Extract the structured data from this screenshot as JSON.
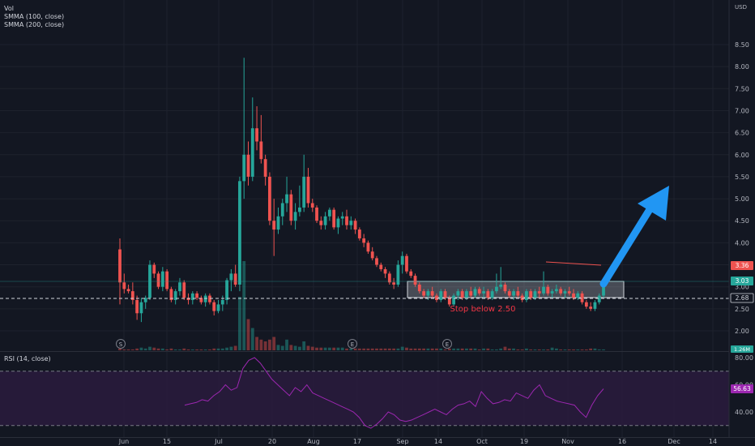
{
  "chart_data": {
    "type": "candlestick",
    "currency": "USD",
    "price_axis": {
      "range": [
        1.7,
        8.7
      ],
      "ticks": [
        "8.50",
        "8.00",
        "7.50",
        "7.00",
        "6.50",
        "6.00",
        "5.50",
        "5.00",
        "4.50",
        "4.00",
        "3.50",
        "3.00",
        "2.50",
        "2.00"
      ]
    },
    "time_axis": {
      "ticks": [
        "Jun",
        "15",
        "Jul",
        "20",
        "Aug",
        "17",
        "Sep",
        "14",
        "Oct",
        "19",
        "Nov",
        "16",
        "Dec",
        "14"
      ]
    },
    "legend": {
      "volume": "Vol",
      "smma100": "SMMA (100, close)",
      "smma200": "SMMA (200, close)"
    },
    "price_labels": {
      "red_line": "3.36",
      "current": "3.03",
      "stop_line": "2.68",
      "volume": "1.26M"
    },
    "annotation": "Stop below 2.50",
    "events": [
      "S",
      "E",
      "E"
    ],
    "rsi": {
      "label": "RSI (14, close)",
      "ticks": [
        "80.00",
        "60.00",
        "40.00"
      ],
      "range": [
        15,
        85
      ],
      "upper": 70,
      "lower": 30,
      "value": "56.63",
      "values": [
        45,
        46,
        47,
        49,
        48,
        52,
        55,
        60,
        56,
        58,
        72,
        78,
        80,
        76,
        70,
        64,
        60,
        56,
        52,
        58,
        55,
        60,
        54,
        52,
        50,
        48,
        46,
        44,
        42,
        40,
        36,
        30,
        28,
        31,
        35,
        40,
        38,
        34,
        33,
        34,
        36,
        38,
        40,
        42,
        40,
        38,
        42,
        45,
        46,
        48,
        44,
        55,
        50,
        46,
        47,
        49,
        48,
        54,
        52,
        50,
        56,
        60,
        52,
        50,
        48,
        47,
        46,
        45,
        40,
        36,
        45,
        52,
        57
      ]
    },
    "candles": [
      {
        "d": "Jun 1",
        "o": 3.85,
        "h": 4.1,
        "l": 2.6,
        "c": 3.1
      },
      {
        "d": "Jun 2",
        "o": 3.1,
        "h": 3.3,
        "l": 2.85,
        "c": 2.95
      },
      {
        "d": "Jun 3",
        "o": 2.95,
        "h": 3.05,
        "l": 2.85,
        "c": 2.9
      },
      {
        "d": "Jun 4",
        "o": 2.9,
        "h": 3.1,
        "l": 2.6,
        "c": 2.7
      },
      {
        "d": "Jun 5",
        "o": 2.7,
        "h": 2.8,
        "l": 2.25,
        "c": 2.4
      },
      {
        "d": "Jun 8",
        "o": 2.4,
        "h": 2.75,
        "l": 2.2,
        "c": 2.65
      },
      {
        "d": "Jun 9",
        "o": 2.65,
        "h": 2.8,
        "l": 2.5,
        "c": 2.75
      },
      {
        "d": "Jun 10",
        "o": 2.75,
        "h": 3.6,
        "l": 2.7,
        "c": 3.5
      },
      {
        "d": "Jun 11",
        "o": 3.5,
        "h": 3.55,
        "l": 3.2,
        "c": 3.3
      },
      {
        "d": "Jun 12",
        "o": 3.3,
        "h": 3.35,
        "l": 2.95,
        "c": 3.0
      },
      {
        "d": "Jun 15",
        "o": 3.0,
        "h": 3.45,
        "l": 2.9,
        "c": 3.35
      },
      {
        "d": "Jun 16",
        "o": 3.35,
        "h": 3.4,
        "l": 2.9,
        "c": 2.95
      },
      {
        "d": "Jun 17",
        "o": 2.95,
        "h": 3.0,
        "l": 2.65,
        "c": 2.7
      },
      {
        "d": "Jun 18",
        "o": 2.7,
        "h": 2.95,
        "l": 2.6,
        "c": 2.9
      },
      {
        "d": "Jun 19",
        "o": 2.9,
        "h": 3.2,
        "l": 2.8,
        "c": 3.1
      },
      {
        "d": "Jun 22",
        "o": 3.1,
        "h": 3.15,
        "l": 2.7,
        "c": 2.75
      },
      {
        "d": "Jun 23",
        "o": 2.75,
        "h": 2.85,
        "l": 2.6,
        "c": 2.7
      },
      {
        "d": "Jun 24",
        "o": 2.7,
        "h": 2.9,
        "l": 2.6,
        "c": 2.85
      },
      {
        "d": "Jun 25",
        "o": 2.85,
        "h": 2.9,
        "l": 2.7,
        "c": 2.75
      },
      {
        "d": "Jun 26",
        "o": 2.75,
        "h": 2.8,
        "l": 2.6,
        "c": 2.65
      },
      {
        "d": "Jun 29",
        "o": 2.65,
        "h": 2.85,
        "l": 2.55,
        "c": 2.8
      },
      {
        "d": "Jun 30",
        "o": 2.8,
        "h": 2.85,
        "l": 2.6,
        "c": 2.65
      },
      {
        "d": "Jul 1",
        "o": 2.65,
        "h": 2.7,
        "l": 2.35,
        "c": 2.45
      },
      {
        "d": "Jul 2",
        "o": 2.45,
        "h": 2.7,
        "l": 2.4,
        "c": 2.6
      },
      {
        "d": "Jul 6",
        "o": 2.6,
        "h": 2.8,
        "l": 2.45,
        "c": 2.7
      },
      {
        "d": "Jul 7",
        "o": 2.7,
        "h": 3.2,
        "l": 2.6,
        "c": 3.15
      },
      {
        "d": "Jul 8",
        "o": 3.15,
        "h": 3.4,
        "l": 2.9,
        "c": 3.3
      },
      {
        "d": "Jul 9",
        "o": 3.3,
        "h": 3.5,
        "l": 3.0,
        "c": 3.05
      },
      {
        "d": "Jul 10",
        "o": 3.05,
        "h": 5.5,
        "l": 2.9,
        "c": 5.4
      },
      {
        "d": "Jul 13",
        "o": 5.4,
        "h": 8.2,
        "l": 5.0,
        "c": 6.0
      },
      {
        "d": "Jul 14",
        "o": 6.0,
        "h": 6.3,
        "l": 5.3,
        "c": 5.5
      },
      {
        "d": "Jul 15",
        "o": 5.5,
        "h": 7.3,
        "l": 5.4,
        "c": 6.6
      },
      {
        "d": "Jul 16",
        "o": 6.6,
        "h": 7.1,
        "l": 6.1,
        "c": 6.3
      },
      {
        "d": "Jul 17",
        "o": 6.3,
        "h": 6.9,
        "l": 5.8,
        "c": 5.9
      },
      {
        "d": "Jul 20",
        "o": 5.9,
        "h": 6.0,
        "l": 5.3,
        "c": 5.5
      },
      {
        "d": "Jul 21",
        "o": 5.5,
        "h": 5.6,
        "l": 4.4,
        "c": 4.5
      },
      {
        "d": "Jul 22",
        "o": 4.5,
        "h": 5.0,
        "l": 3.7,
        "c": 4.3
      },
      {
        "d": "Jul 23",
        "o": 4.3,
        "h": 4.8,
        "l": 4.2,
        "c": 4.6
      },
      {
        "d": "Jul 24",
        "o": 4.6,
        "h": 5.0,
        "l": 4.4,
        "c": 4.9
      },
      {
        "d": "Jul 27",
        "o": 4.9,
        "h": 5.5,
        "l": 4.7,
        "c": 5.1
      },
      {
        "d": "Jul 28",
        "o": 5.1,
        "h": 5.2,
        "l": 4.4,
        "c": 4.5
      },
      {
        "d": "Jul 29",
        "o": 4.5,
        "h": 4.9,
        "l": 4.3,
        "c": 4.7
      },
      {
        "d": "Jul 30",
        "o": 4.7,
        "h": 5.3,
        "l": 4.6,
        "c": 4.8
      },
      {
        "d": "Jul 31",
        "o": 4.8,
        "h": 6.0,
        "l": 4.7,
        "c": 5.5
      },
      {
        "d": "Aug 3",
        "o": 5.5,
        "h": 5.7,
        "l": 4.8,
        "c": 4.9
      },
      {
        "d": "Aug 4",
        "o": 4.9,
        "h": 5.0,
        "l": 4.7,
        "c": 4.8
      },
      {
        "d": "Aug 5",
        "o": 4.8,
        "h": 4.85,
        "l": 4.45,
        "c": 4.5
      },
      {
        "d": "Aug 6",
        "o": 4.5,
        "h": 4.6,
        "l": 4.3,
        "c": 4.4
      },
      {
        "d": "Aug 7",
        "o": 4.4,
        "h": 4.7,
        "l": 4.3,
        "c": 4.6
      },
      {
        "d": "Aug 10",
        "o": 4.6,
        "h": 4.8,
        "l": 4.5,
        "c": 4.75
      },
      {
        "d": "Aug 11",
        "o": 4.75,
        "h": 4.8,
        "l": 4.3,
        "c": 4.35
      },
      {
        "d": "Aug 12",
        "o": 4.35,
        "h": 4.6,
        "l": 4.2,
        "c": 4.55
      },
      {
        "d": "Aug 13",
        "o": 4.55,
        "h": 4.7,
        "l": 4.4,
        "c": 4.6
      },
      {
        "d": "Aug 14",
        "o": 4.6,
        "h": 4.75,
        "l": 4.3,
        "c": 4.4
      },
      {
        "d": "Aug 17",
        "o": 4.4,
        "h": 4.6,
        "l": 4.3,
        "c": 4.5
      },
      {
        "d": "Aug 18",
        "o": 4.5,
        "h": 4.55,
        "l": 4.2,
        "c": 4.3
      },
      {
        "d": "Aug 19",
        "o": 4.3,
        "h": 4.35,
        "l": 4.05,
        "c": 4.1
      },
      {
        "d": "Aug 20",
        "o": 4.1,
        "h": 4.2,
        "l": 3.9,
        "c": 4.0
      },
      {
        "d": "Aug 21",
        "o": 4.0,
        "h": 4.05,
        "l": 3.75,
        "c": 3.8
      },
      {
        "d": "Aug 24",
        "o": 3.8,
        "h": 3.9,
        "l": 3.6,
        "c": 3.65
      },
      {
        "d": "Aug 25",
        "o": 3.65,
        "h": 3.7,
        "l": 3.45,
        "c": 3.5
      },
      {
        "d": "Aug 26",
        "o": 3.5,
        "h": 3.55,
        "l": 3.35,
        "c": 3.4
      },
      {
        "d": "Aug 27",
        "o": 3.4,
        "h": 3.45,
        "l": 3.2,
        "c": 3.3
      },
      {
        "d": "Aug 28",
        "o": 3.3,
        "h": 3.35,
        "l": 3.05,
        "c": 3.1
      },
      {
        "d": "Aug 31",
        "o": 3.1,
        "h": 3.2,
        "l": 2.95,
        "c": 3.05
      },
      {
        "d": "Sep 1",
        "o": 3.05,
        "h": 3.6,
        "l": 3.0,
        "c": 3.5
      },
      {
        "d": "Sep 2",
        "o": 3.5,
        "h": 3.8,
        "l": 3.3,
        "c": 3.7
      },
      {
        "d": "Sep 3",
        "o": 3.7,
        "h": 3.75,
        "l": 3.3,
        "c": 3.35
      },
      {
        "d": "Sep 4",
        "o": 3.35,
        "h": 3.4,
        "l": 3.2,
        "c": 3.25
      },
      {
        "d": "Sep 8",
        "o": 3.25,
        "h": 3.3,
        "l": 3.0,
        "c": 3.05
      },
      {
        "d": "Sep 9",
        "o": 3.05,
        "h": 3.1,
        "l": 2.85,
        "c": 2.9
      },
      {
        "d": "Sep 10",
        "o": 2.9,
        "h": 2.95,
        "l": 2.75,
        "c": 2.8
      },
      {
        "d": "Sep 11",
        "o": 2.8,
        "h": 2.95,
        "l": 2.7,
        "c": 2.9
      },
      {
        "d": "Sep 14",
        "o": 2.9,
        "h": 3.0,
        "l": 2.75,
        "c": 2.8
      },
      {
        "d": "Sep 15",
        "o": 2.8,
        "h": 2.85,
        "l": 2.65,
        "c": 2.7
      },
      {
        "d": "Sep 16",
        "o": 2.7,
        "h": 2.95,
        "l": 2.65,
        "c": 2.9
      },
      {
        "d": "Sep 17",
        "o": 2.9,
        "h": 2.95,
        "l": 2.7,
        "c": 2.75
      },
      {
        "d": "Sep 18",
        "o": 2.75,
        "h": 2.8,
        "l": 2.55,
        "c": 2.6
      },
      {
        "d": "Sep 21",
        "o": 2.6,
        "h": 2.85,
        "l": 2.55,
        "c": 2.8
      },
      {
        "d": "Sep 22",
        "o": 2.8,
        "h": 2.95,
        "l": 2.7,
        "c": 2.9
      },
      {
        "d": "Sep 23",
        "o": 2.9,
        "h": 2.95,
        "l": 2.7,
        "c": 2.75
      },
      {
        "d": "Sep 24",
        "o": 2.75,
        "h": 2.95,
        "l": 2.7,
        "c": 2.9
      },
      {
        "d": "Sep 25",
        "o": 2.9,
        "h": 3.0,
        "l": 2.75,
        "c": 2.8
      },
      {
        "d": "Sep 28",
        "o": 2.8,
        "h": 3.0,
        "l": 2.75,
        "c": 2.95
      },
      {
        "d": "Sep 29",
        "o": 2.95,
        "h": 3.0,
        "l": 2.8,
        "c": 2.85
      },
      {
        "d": "Sep 30",
        "o": 2.85,
        "h": 3.0,
        "l": 2.75,
        "c": 2.9
      },
      {
        "d": "Oct 1",
        "o": 2.9,
        "h": 2.95,
        "l": 2.7,
        "c": 2.75
      },
      {
        "d": "Oct 2",
        "o": 2.75,
        "h": 2.95,
        "l": 2.7,
        "c": 2.9
      },
      {
        "d": "Oct 5",
        "o": 2.9,
        "h": 3.3,
        "l": 2.85,
        "c": 3.0
      },
      {
        "d": "Oct 6",
        "o": 3.0,
        "h": 3.45,
        "l": 2.95,
        "c": 3.05
      },
      {
        "d": "Oct 7",
        "o": 3.05,
        "h": 3.1,
        "l": 2.85,
        "c": 2.9
      },
      {
        "d": "Oct 8",
        "o": 2.9,
        "h": 2.95,
        "l": 2.75,
        "c": 2.8
      },
      {
        "d": "Oct 9",
        "o": 2.8,
        "h": 2.95,
        "l": 2.7,
        "c": 2.9
      },
      {
        "d": "Oct 12",
        "o": 2.9,
        "h": 3.0,
        "l": 2.75,
        "c": 2.8
      },
      {
        "d": "Oct 13",
        "o": 2.8,
        "h": 2.85,
        "l": 2.65,
        "c": 2.7
      },
      {
        "d": "Oct 14",
        "o": 2.7,
        "h": 2.95,
        "l": 2.65,
        "c": 2.9
      },
      {
        "d": "Oct 15",
        "o": 2.9,
        "h": 2.95,
        "l": 2.7,
        "c": 2.75
      },
      {
        "d": "Oct 16",
        "o": 2.75,
        "h": 2.95,
        "l": 2.7,
        "c": 2.9
      },
      {
        "d": "Oct 19",
        "o": 2.9,
        "h": 3.0,
        "l": 2.75,
        "c": 2.85
      },
      {
        "d": "Oct 20",
        "o": 2.85,
        "h": 3.35,
        "l": 2.8,
        "c": 3.0
      },
      {
        "d": "Oct 21",
        "o": 3.0,
        "h": 3.05,
        "l": 2.8,
        "c": 2.85
      },
      {
        "d": "Oct 22",
        "o": 2.85,
        "h": 2.95,
        "l": 2.75,
        "c": 2.9
      },
      {
        "d": "Oct 23",
        "o": 2.9,
        "h": 3.05,
        "l": 2.85,
        "c": 2.95
      },
      {
        "d": "Oct 26",
        "o": 2.95,
        "h": 3.0,
        "l": 2.8,
        "c": 2.85
      },
      {
        "d": "Oct 27",
        "o": 2.85,
        "h": 2.95,
        "l": 2.75,
        "c": 2.9
      },
      {
        "d": "Oct 28",
        "o": 2.9,
        "h": 3.0,
        "l": 2.8,
        "c": 2.85
      },
      {
        "d": "Oct 29",
        "o": 2.85,
        "h": 2.95,
        "l": 2.7,
        "c": 2.75
      },
      {
        "d": "Oct 30",
        "o": 2.75,
        "h": 2.9,
        "l": 2.7,
        "c": 2.85
      },
      {
        "d": "Nov 2",
        "o": 2.85,
        "h": 2.9,
        "l": 2.6,
        "c": 2.65
      },
      {
        "d": "Nov 3",
        "o": 2.65,
        "h": 2.7,
        "l": 2.5,
        "c": 2.55
      },
      {
        "d": "Nov 4",
        "o": 2.55,
        "h": 2.65,
        "l": 2.45,
        "c": 2.5
      },
      {
        "d": "Nov 5",
        "o": 2.5,
        "h": 2.7,
        "l": 2.45,
        "c": 2.65
      },
      {
        "d": "Nov 6",
        "o": 2.65,
        "h": 2.85,
        "l": 2.6,
        "c": 2.8
      },
      {
        "d": "Nov 9",
        "o": 2.8,
        "h": 3.1,
        "l": 2.75,
        "c": 3.03
      }
    ],
    "volumes": [
      0.02,
      0.01,
      0.01,
      0.01,
      0.02,
      0.03,
      0.02,
      0.04,
      0.03,
      0.02,
      0.02,
      0.01,
      0.02,
      0.01,
      0.01,
      0.02,
      0.01,
      0.01,
      0.01,
      0.01,
      0.01,
      0.01,
      0.02,
      0.02,
      0.02,
      0.03,
      0.04,
      0.05,
      0.6,
      1.0,
      0.35,
      0.25,
      0.15,
      0.12,
      0.1,
      0.12,
      0.15,
      0.06,
      0.05,
      0.12,
      0.06,
      0.05,
      0.04,
      0.1,
      0.05,
      0.04,
      0.03,
      0.03,
      0.03,
      0.03,
      0.03,
      0.03,
      0.03,
      0.02,
      0.02,
      0.02,
      0.02,
      0.02,
      0.02,
      0.02,
      0.02,
      0.02,
      0.02,
      0.02,
      0.02,
      0.02,
      0.04,
      0.03,
      0.02,
      0.02,
      0.02,
      0.02,
      0.02,
      0.02,
      0.02,
      0.02,
      0.01,
      0.02,
      0.02,
      0.02,
      0.02,
      0.02,
      0.02,
      0.02,
      0.01,
      0.02,
      0.02,
      0.01,
      0.01,
      0.02,
      0.04,
      0.02,
      0.02,
      0.01,
      0.01,
      0.02,
      0.01,
      0.01,
      0.01,
      0.01,
      0.01,
      0.03,
      0.02,
      0.01,
      0.01,
      0.01,
      0.01,
      0.01,
      0.01,
      0.01,
      0.02,
      0.02,
      0.01,
      0.01,
      0.02,
      0.02
    ]
  },
  "colors": {
    "background": "#131722",
    "grid": "#1e222d",
    "up": "#26a69a",
    "down": "#ef5350",
    "rsi_line": "#9c27b0",
    "rsi_band": "#2a1b3d",
    "arrow": "#2196f3",
    "annotation": "#f23645"
  }
}
